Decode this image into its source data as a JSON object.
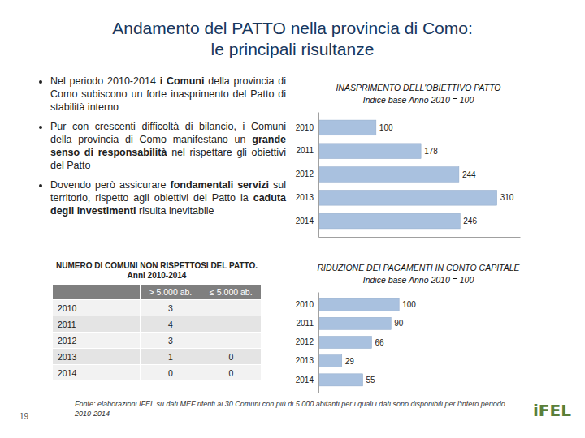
{
  "title": [
    "Andamento del PATTO nella provincia di Como:",
    "le principali risultanze"
  ],
  "bullets": [
    [
      {
        "text": "Nel periodo 2010-2014 "
      },
      {
        "text": "i Comuni",
        "bold": true
      },
      {
        "text": " della provincia di Como subiscono un forte inasprimento del Patto di stabilità interno"
      }
    ],
    [
      {
        "text": "Pur con crescenti difficoltà di bilancio, i Comuni della provincia di Como manifestano un "
      },
      {
        "text": "grande senso di responsabilità",
        "bold": true
      },
      {
        "text": " nel rispettare gli obiettivi del Patto"
      }
    ],
    [
      {
        "text": "Dovendo però assicurare "
      },
      {
        "text": "fondamentali servizi",
        "bold": true
      },
      {
        "text": " sul territorio, rispetto agli obiettivi del Patto la "
      },
      {
        "text": "caduta degli investimenti",
        "bold": true
      },
      {
        "text": " risulta inevitabile"
      }
    ]
  ],
  "table": {
    "title": "NUMERO DI COMUNI NON RISPETTOSI DEL PATTO. Anni 2010-2014",
    "header": [
      "> 5.000 ab.",
      "≤ 5.000 ab."
    ],
    "rows": [
      [
        "2010",
        3,
        null
      ],
      [
        "2011",
        4,
        null
      ],
      [
        "2012",
        3,
        null
      ],
      [
        "2013",
        1,
        0
      ],
      [
        "2014",
        0,
        0
      ]
    ]
  },
  "chart_data": [
    {
      "type": "bar",
      "orientation": "horizontal",
      "title": "INASPRIMENTO DELL'OBIETTIVO PATTO",
      "subtitle": "Indice base Anno 2010 = 100",
      "categories": [
        "2010",
        "2011",
        "2012",
        "2013",
        "2014"
      ],
      "values": [
        100,
        178,
        244,
        310,
        246
      ],
      "color": "#a9c1df",
      "xlim": [
        0,
        350
      ],
      "tick_labels": "y",
      "data_labels": true
    },
    {
      "type": "bar",
      "orientation": "horizontal",
      "title": "RIDUZIONE DEI PAGAMENTI IN CONTO CAPITALE",
      "subtitle": "Indice base Anno 2010 = 100",
      "categories": [
        "2010",
        "2011",
        "2012",
        "2013",
        "2014"
      ],
      "values": [
        100,
        90,
        66,
        29,
        55
      ],
      "color": "#a9c1df",
      "xlim": [
        0,
        250
      ],
      "tick_labels": "y",
      "data_labels": true
    }
  ],
  "footer": "Fonte: elaborazioni IFEL su dati MEF riferiti ai 30 Comuni con più di 5.000 abitanti per i quali i dati sono disponibili per l'intero periodo 2010-2014",
  "page_number": "19",
  "logo": "iFEL"
}
